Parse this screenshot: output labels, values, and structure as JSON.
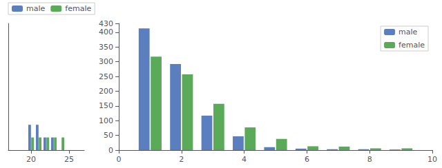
{
  "chart_data": [
    {
      "type": "bar",
      "x": [
        18,
        19,
        20,
        21,
        22,
        23,
        24,
        25,
        26
      ],
      "series": [
        {
          "name": "male",
          "color": "#5b7fbe",
          "values": [
            0.0,
            0.0,
            0.02,
            0.02,
            0.01,
            0.01,
            0.0,
            0.0,
            0.0
          ]
        },
        {
          "name": "female",
          "color": "#5aaa5a",
          "values": [
            0.0,
            0.0,
            0.01,
            0.01,
            0.01,
            0.01,
            0.01,
            0.0,
            0.0
          ]
        }
      ],
      "xlim": [
        17,
        27
      ],
      "ylim": [
        0,
        0.1
      ],
      "xticks": [
        20,
        25
      ],
      "tick_labels": "x",
      "grid": false,
      "legend": "upper left"
    },
    {
      "type": "bar",
      "x": [
        1,
        2,
        3,
        4,
        5,
        6,
        7,
        8,
        9
      ],
      "series": [
        {
          "name": "male",
          "color": "#5b7fbe",
          "values": [
            413,
            292,
            117,
            47,
            10,
            5,
            3,
            3,
            2
          ]
        },
        {
          "name": "female",
          "color": "#5aaa5a",
          "values": [
            317,
            257,
            157,
            77,
            38,
            13,
            12,
            6,
            6
          ]
        }
      ],
      "xlim": [
        0,
        10
      ],
      "ylim": [
        0,
        430
      ],
      "xticks": [
        0,
        2,
        4,
        6,
        8,
        10
      ],
      "yticks": [
        0,
        50,
        100,
        150,
        200,
        250,
        300,
        350,
        400
      ],
      "grid": false,
      "legend": "upper right"
    }
  ]
}
